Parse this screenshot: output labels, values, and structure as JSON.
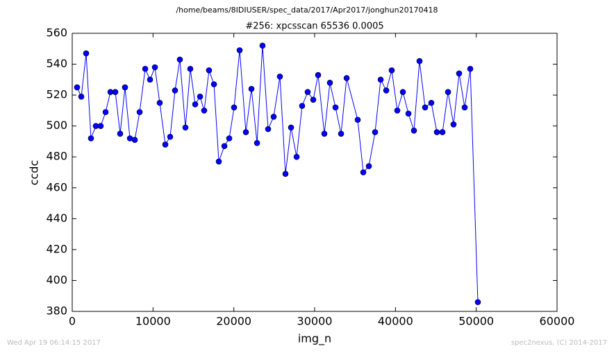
{
  "header": "/home/beams/8IDIUSER/spec_data/2017/Apr2017/jonghun20170418",
  "footer_left": "Wed Apr 19 06:14:15 2017",
  "footer_right": "spec2nexus, (C) 2014-2017",
  "chart_data": {
    "type": "line",
    "title": "#256: xpcsscan 65536 0.0005",
    "x_label": "img_n",
    "y_label": "ccdc",
    "x": [
      600,
      1120,
      1720,
      2320,
      2920,
      3520,
      4130,
      4730,
      5330,
      5930,
      6530,
      7140,
      7740,
      8340,
      9030,
      9630,
      10230,
      10830,
      11520,
      12120,
      12720,
      13320,
      14010,
      14610,
      15220,
      15820,
      16330,
      16930,
      17540,
      18140,
      18830,
      19430,
      20030,
      20720,
      21490,
      22180,
      22870,
      23550,
      24240,
      24930,
      25700,
      26390,
      27080,
      27770,
      28450,
      29140,
      29830,
      30430,
      31200,
      31890,
      32580,
      33270,
      33960,
      35330,
      36020,
      36710,
      37480,
      38170,
      38860,
      39540,
      40230,
      40920,
      41610,
      42290,
      42980,
      43670,
      44440,
      45130,
      45820,
      46510,
      47190,
      47880,
      48570,
      49260,
      50200
    ],
    "series": [
      {
        "name": "ccdc",
        "color": "#0000ff",
        "values": [
          525,
          519,
          547,
          492,
          500,
          500,
          509,
          522,
          522,
          495,
          525,
          492,
          491,
          509,
          537,
          530,
          538,
          515,
          488,
          493,
          523,
          543,
          499,
          537,
          514,
          519,
          510,
          536,
          527,
          477,
          487,
          492,
          512,
          549,
          496,
          524,
          489,
          552,
          498,
          506,
          532,
          469,
          499,
          480,
          513,
          522,
          517,
          533,
          495,
          528,
          512,
          495,
          531,
          504,
          470,
          474,
          496,
          530,
          523,
          536,
          510,
          522,
          508,
          497,
          542,
          512,
          515,
          496,
          496,
          522,
          501,
          534,
          512,
          537,
          386
        ]
      }
    ],
    "xlim": [
      0,
      60000
    ],
    "ylim": [
      380,
      560
    ],
    "xticks": [
      0,
      10000,
      20000,
      30000,
      40000,
      50000,
      60000
    ],
    "yticks": [
      380,
      400,
      420,
      440,
      460,
      480,
      500,
      520,
      540,
      560
    ]
  }
}
